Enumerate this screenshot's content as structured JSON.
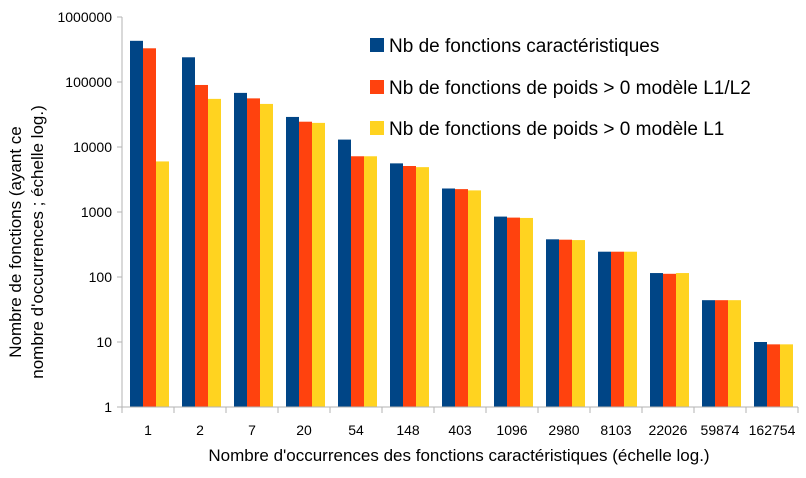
{
  "chart_data": {
    "type": "bar",
    "title": "",
    "xlabel": "Nombre d'occurrences des fonctions caractéristiques (échelle log.)",
    "ylabel_lines": [
      "Nombre de fonctions (ayant ce",
      "nombre d'occurrences ; échelle log.)"
    ],
    "y_scale": "log",
    "ylim": [
      1,
      1000000
    ],
    "y_ticks": [
      "1",
      "10",
      "100",
      "1000",
      "10000",
      "100000",
      "1000000"
    ],
    "grid": false,
    "legend_position": "top-right",
    "categories": [
      "1",
      "2",
      "7",
      "20",
      "54",
      "148",
      "403",
      "1096",
      "2980",
      "8103",
      "22026",
      "59874",
      "162754"
    ],
    "series": [
      {
        "name": "Nb de fonctions caractéristiques",
        "color": "#004586",
        "values": [
          430000,
          240000,
          68000,
          29000,
          13000,
          5600,
          2300,
          850,
          380,
          245,
          115,
          44,
          10
        ]
      },
      {
        "name": "Nb de fonctions de poids > 0 modèle L1/L2",
        "color": "#ff420e",
        "values": [
          330000,
          90000,
          56000,
          24500,
          7200,
          5100,
          2250,
          820,
          375,
          245,
          112,
          44,
          9.2
        ]
      },
      {
        "name": "Nb de fonctions de poids > 0 modèle L1",
        "color": "#ffd320",
        "values": [
          6000,
          55000,
          46000,
          23500,
          7200,
          4900,
          2150,
          810,
          370,
          245,
          115,
          44,
          9.2
        ]
      }
    ]
  }
}
